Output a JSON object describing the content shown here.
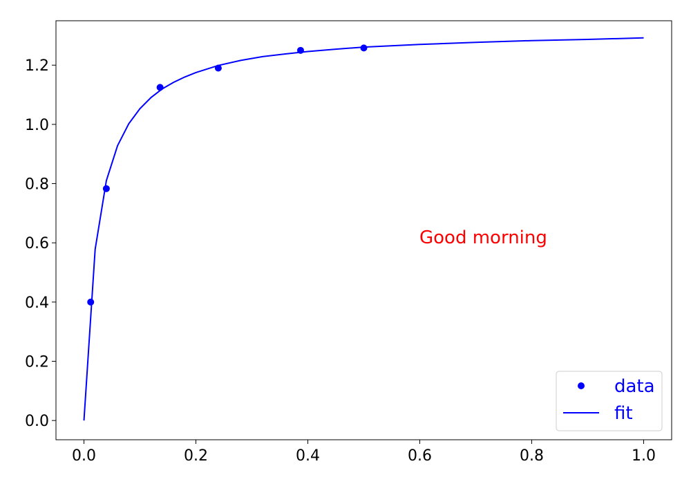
{
  "chart_data": {
    "type": "scatter",
    "title": "",
    "xlabel": "",
    "ylabel": "",
    "xlim": [
      -0.05,
      1.05
    ],
    "ylim": [
      -0.065,
      1.35
    ],
    "grid": false,
    "x_ticks": [
      "0.0",
      "0.2",
      "0.4",
      "0.6",
      "0.8",
      "1.0"
    ],
    "y_ticks": [
      "0.0",
      "0.2",
      "0.4",
      "0.6",
      "0.8",
      "1.0",
      "1.2"
    ],
    "series": [
      {
        "name": "data",
        "kind": "markers",
        "color": "#0000ff",
        "x": [
          0.012,
          0.04,
          0.136,
          0.24,
          0.387,
          0.5
        ],
        "y": [
          0.4,
          0.783,
          1.125,
          1.19,
          1.25,
          1.258
        ]
      },
      {
        "name": "fit",
        "kind": "line",
        "color": "#0000ff",
        "x": [
          0,
          0.02,
          0.04,
          0.06,
          0.08,
          0.1,
          0.12,
          0.14,
          0.16,
          0.18,
          0.2,
          0.24,
          0.28,
          0.32,
          0.36,
          0.4,
          0.45,
          0.5,
          0.6,
          0.7,
          0.8,
          0.9,
          1.0
        ],
        "y": [
          0,
          0.578,
          0.81,
          0.928,
          1.002,
          1.053,
          1.091,
          1.12,
          1.142,
          1.16,
          1.175,
          1.199,
          1.216,
          1.229,
          1.238,
          1.246,
          1.254,
          1.261,
          1.27,
          1.277,
          1.283,
          1.287,
          1.292
        ]
      }
    ],
    "annotation": {
      "text": "Good morning",
      "color": "#ff0000"
    },
    "legend": {
      "location": "lower-right",
      "entries": [
        "data",
        "fit"
      ]
    }
  }
}
